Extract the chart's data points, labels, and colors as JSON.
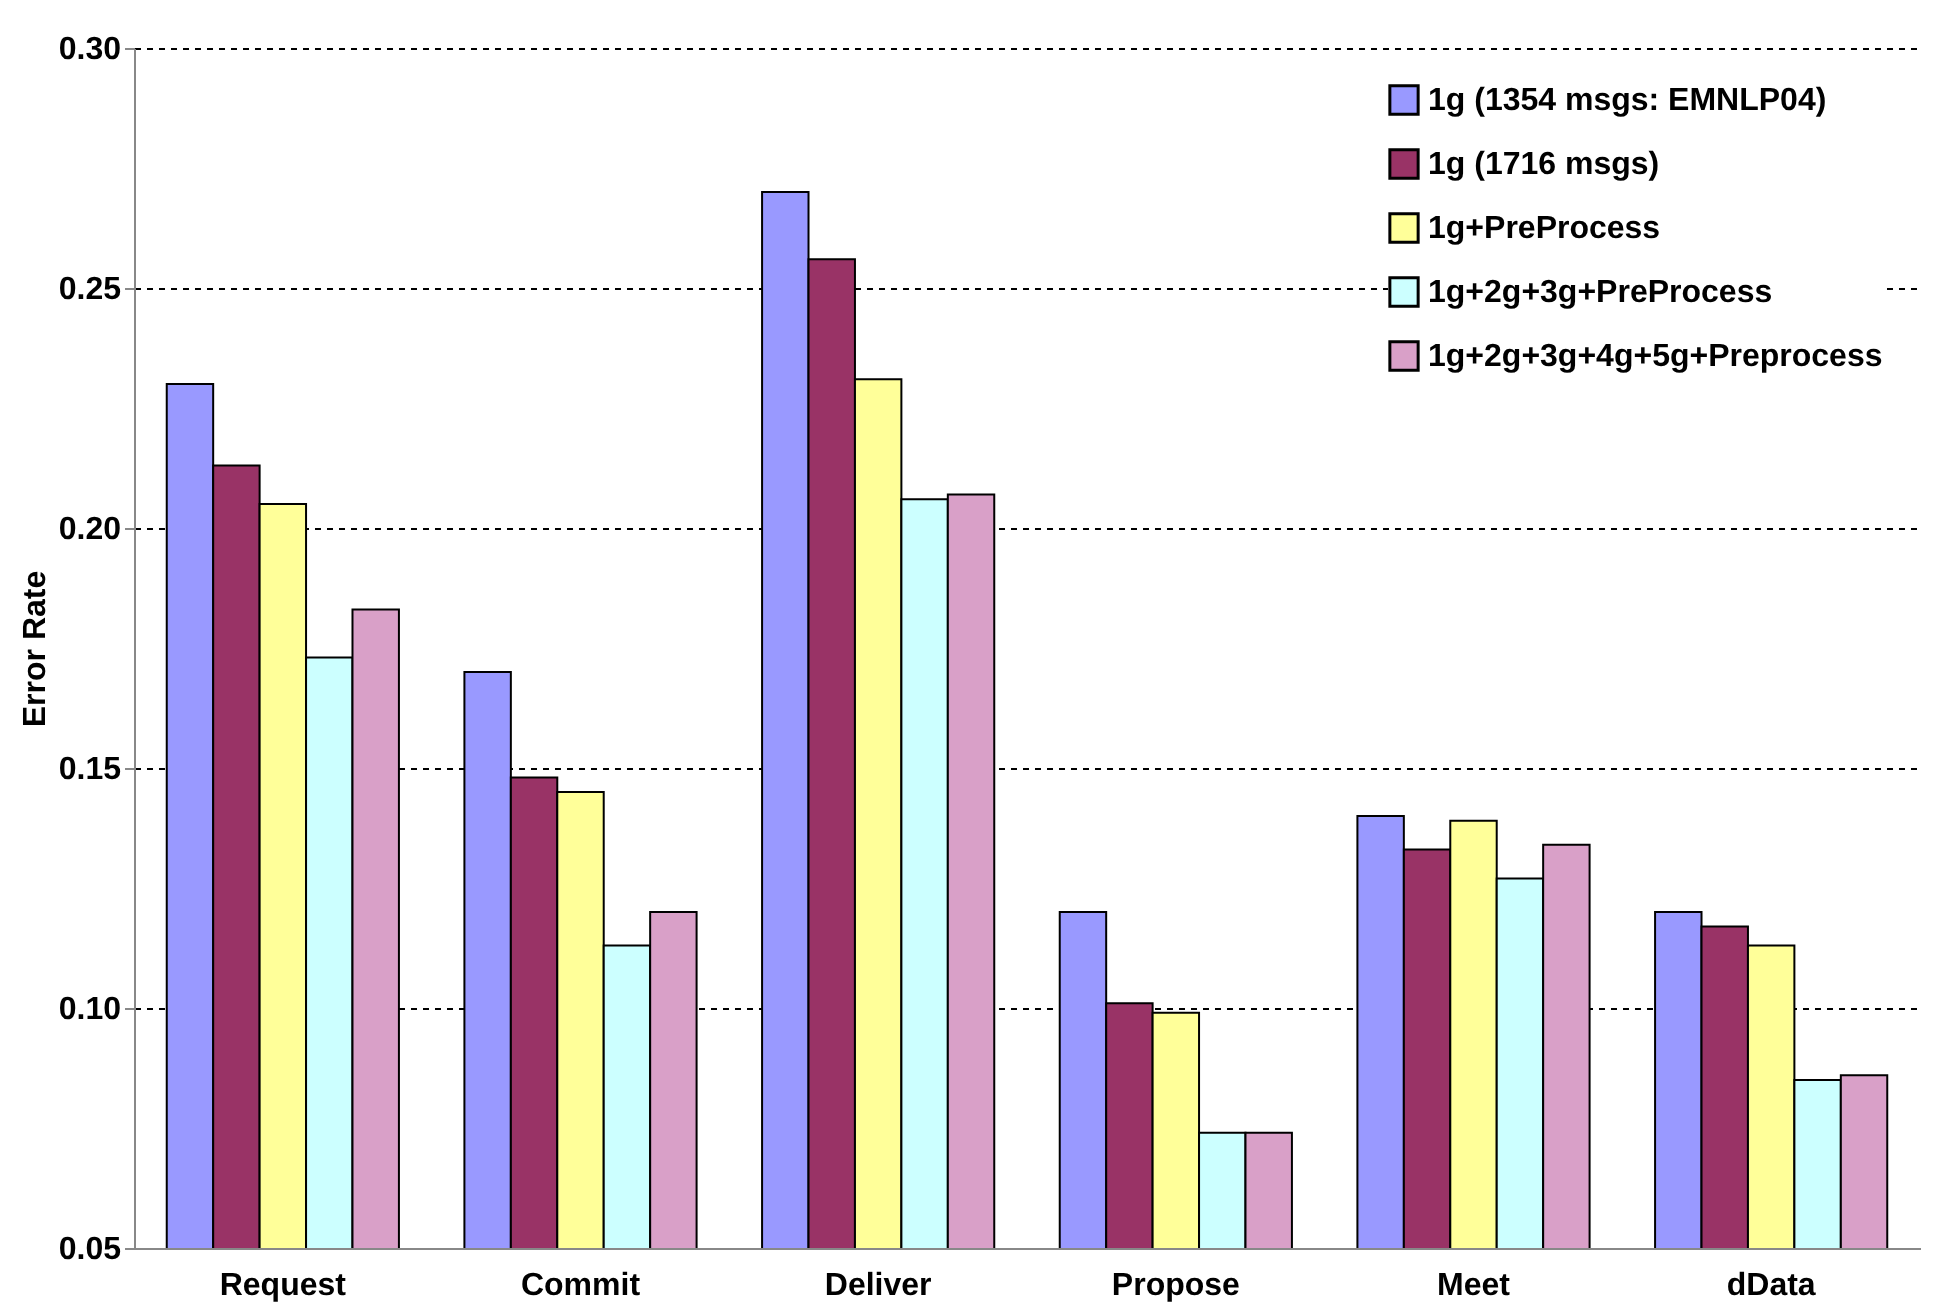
{
  "chart_data": {
    "type": "bar",
    "ylabel": "Error Rate",
    "categories": [
      "Request",
      "Commit",
      "Deliver",
      "Propose",
      "Meet",
      "dData"
    ],
    "series": [
      {
        "name": "1g (1354 msgs: EMNLP04)",
        "color": "#9999ff",
        "values": [
          0.23,
          0.17,
          0.27,
          0.12,
          0.14,
          0.12
        ]
      },
      {
        "name": "1g (1716 msgs)",
        "color": "#993366",
        "values": [
          0.213,
          0.148,
          0.256,
          0.101,
          0.133,
          0.117
        ]
      },
      {
        "name": "1g+PreProcess",
        "color": "#ffff99",
        "values": [
          0.205,
          0.145,
          0.231,
          0.099,
          0.139,
          0.113
        ]
      },
      {
        "name": "1g+2g+3g+PreProcess",
        "color": "#ccffff",
        "values": [
          0.173,
          0.113,
          0.206,
          0.074,
          0.127,
          0.085
        ]
      },
      {
        "name": "1g+2g+3g+4g+5g+Preprocess",
        "color": "#d9a0c8",
        "values": [
          0.183,
          0.12,
          0.207,
          0.074,
          0.134,
          0.086
        ]
      }
    ],
    "ylim": [
      0.05,
      0.3
    ],
    "yticks": [
      0.05,
      {
        "value": 0.1,
        "label": "0.10"
      },
      0.15,
      {
        "value": 0.2,
        "label": "0.20"
      },
      0.25,
      {
        "value": 0.3,
        "label": "0.30"
      }
    ],
    "grid": "y",
    "legend": "top right"
  }
}
